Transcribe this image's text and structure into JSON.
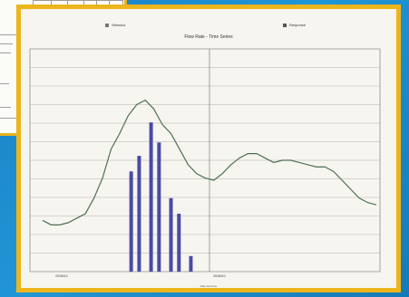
{
  "colors": {
    "background": "#1f8ad0",
    "frame": "#ecb51b",
    "bar": "#4a4aa5",
    "line": "#4f6f57"
  },
  "legend": {
    "left_label": "Stimulus",
    "right_label": "Response"
  },
  "chart_data": {
    "type": "bar",
    "title": "Flow Rate - Time Series",
    "x_tick_labels": [
      "20/08/10",
      "25/08/10"
    ],
    "footer": "Date and time",
    "bar_series": {
      "name": "Stimulus",
      "values": [
        0,
        0,
        0,
        0,
        0,
        0,
        0,
        0,
        0,
        0,
        0,
        0,
        0,
        0,
        0,
        0,
        0,
        0,
        0,
        0,
        0,
        0,
        0,
        0,
        0,
        45,
        0,
        52,
        0,
        0,
        67,
        0,
        58,
        0,
        0,
        33,
        0,
        26,
        0,
        0,
        7,
        0,
        0,
        0,
        0,
        0,
        0,
        0,
        0,
        0,
        0,
        0,
        0,
        0,
        0,
        0,
        0,
        0,
        0,
        0,
        0,
        0,
        0,
        0,
        0,
        0,
        0,
        0,
        0,
        0,
        0,
        0,
        0,
        0,
        0,
        0,
        0,
        0,
        0,
        0,
        0,
        0,
        0,
        0,
        0,
        0,
        0,
        0
      ]
    },
    "line_series": {
      "name": "Response",
      "values": [
        23,
        21,
        21,
        22,
        24,
        26,
        33,
        42,
        55,
        62,
        70,
        75,
        77,
        73,
        66,
        62,
        55,
        48,
        44,
        42,
        41,
        44,
        48,
        51,
        53,
        53,
        51,
        49,
        50,
        50,
        49,
        48,
        47,
        47,
        45,
        41,
        37,
        33,
        31,
        30
      ]
    },
    "ylim": [
      0,
      100
    ],
    "grid": true
  }
}
